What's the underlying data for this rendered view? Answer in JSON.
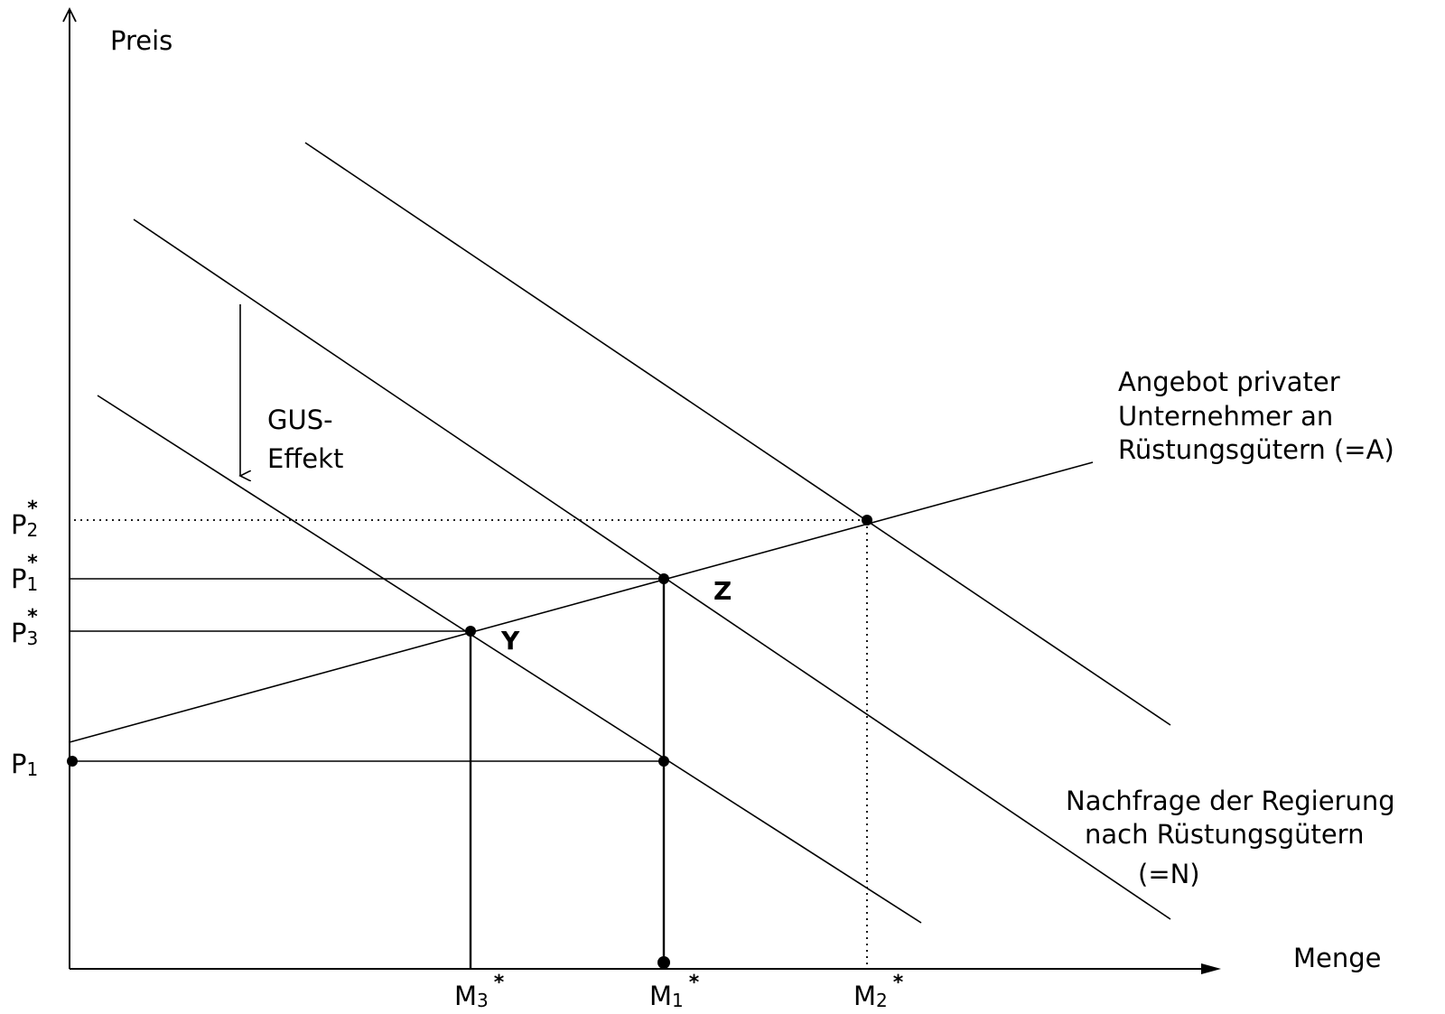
{
  "diagram": {
    "y_axis_label": "Preis",
    "x_axis_label": "Menge",
    "shift_label_line1": "GUS-",
    "shift_label_line2": "Effekt",
    "supply_label_line1": "Angebot privater",
    "supply_label_line2": "Unternehmer an",
    "supply_label_line3": "Rüstungsgütern (=A)",
    "demand_label_line1": "Nachfrage der Regierung",
    "demand_label_line2": "nach Rüstungsgütern",
    "demand_label_line3": "(=N)",
    "price_ticks": {
      "p2_star": {
        "base": "P",
        "sub": "2",
        "star": "*"
      },
      "p1_star": {
        "base": "P",
        "sub": "1",
        "star": "*"
      },
      "p3_star": {
        "base": "P",
        "sub": "3",
        "star": "*"
      },
      "p1": {
        "base": "P",
        "sub": "1"
      }
    },
    "quantity_ticks": {
      "m3_star": {
        "base": "M",
        "sub": "3",
        "star": "*"
      },
      "m1_star": {
        "base": "M",
        "sub": "1",
        "star": "*"
      },
      "m2_star": {
        "base": "M",
        "sub": "2",
        "star": "*"
      }
    },
    "point_labels": {
      "z": "Z",
      "y": "Y"
    }
  }
}
